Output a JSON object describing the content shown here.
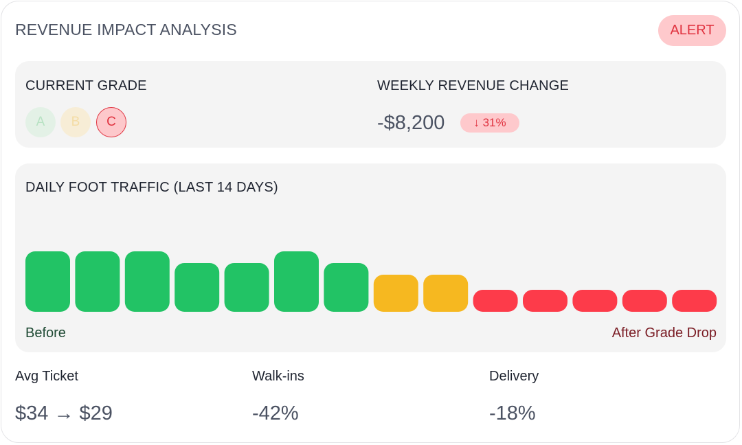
{
  "header": {
    "title": "REVENUE IMPACT ANALYSIS",
    "alert_label": "ALERT"
  },
  "grade": {
    "label": "CURRENT GRADE",
    "options": [
      "A",
      "B",
      "C"
    ],
    "current": "C"
  },
  "revenue": {
    "label": "WEEKLY REVENUE CHANGE",
    "value": "-$8,200",
    "change": "↓ 31%"
  },
  "traffic": {
    "title": "DAILY FOOT TRAFFIC (LAST 14 DAYS)",
    "before_label": "Before",
    "after_label": "After Grade Drop"
  },
  "chart_data": {
    "type": "bar",
    "title": "DAILY FOOT TRAFFIC (LAST 14 DAYS)",
    "values": [
      88,
      88,
      88,
      71,
      71,
      88,
      71,
      54,
      54,
      32,
      32,
      32,
      32,
      32
    ],
    "status": [
      "green",
      "green",
      "green",
      "green",
      "green",
      "green",
      "green",
      "amber",
      "amber",
      "red",
      "red",
      "red",
      "red",
      "red"
    ],
    "ymax": 100,
    "colors": {
      "green": "#22c365",
      "amber": "#f6b820",
      "red": "#fd3b4a"
    }
  },
  "stats": [
    {
      "label": "Avg Ticket",
      "value": "$34 → $29"
    },
    {
      "label": "Walk-ins",
      "value": "-42%"
    },
    {
      "label": "Delivery",
      "value": "-18%"
    }
  ],
  "colors": {
    "alert_bg": "#fec9cc",
    "alert_text": "#e0323f",
    "panel_bg": "#f4f4f4"
  }
}
